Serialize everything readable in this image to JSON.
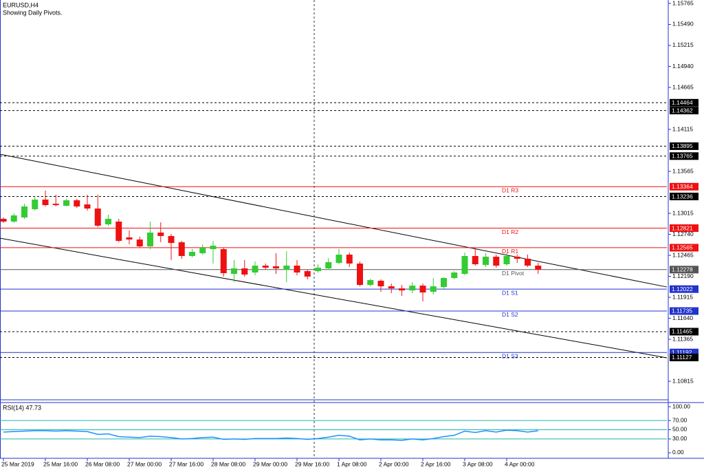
{
  "chart_data": [
    {
      "type": "candlestick",
      "title": "EURUSD,H4",
      "subtitle": "Showing Daily Pivots.",
      "categories": [
        "25 Mar 2019",
        null,
        null,
        null,
        "25 Mar 16:00",
        null,
        null,
        null,
        "26 Mar 08:00",
        null,
        null,
        null,
        "27 Mar 00:00",
        null,
        null,
        null,
        "27 Mar 16:00",
        null,
        null,
        null,
        "28 Mar 08:00",
        null,
        null,
        null,
        "29 Mar 00:00",
        null,
        null,
        null,
        "29 Mar 16:00",
        null,
        null,
        null,
        "1 Apr 08:00",
        null,
        null,
        null,
        "2 Apr 00:00",
        null,
        null,
        null,
        "2 Apr 16:00",
        null,
        null,
        null,
        "3 Apr 08:00",
        null,
        null,
        null,
        "4 Apr 00:00",
        null,
        null,
        null
      ],
      "open": [
        1.12943,
        1.12907,
        1.12961,
        1.13069,
        1.13195,
        1.13141,
        1.13114,
        1.13186,
        1.13132,
        1.13078,
        1.12871,
        1.12907,
        1.127,
        1.12672,
        1.12582,
        1.12763,
        1.12718,
        1.12636,
        1.12456,
        1.12492,
        1.12546,
        1.12546,
        1.12222,
        1.12294,
        1.1224,
        1.1233,
        1.12321,
        1.12276,
        1.1233,
        1.12258,
        1.12258,
        1.12294,
        1.12366,
        1.12474,
        1.12357,
        1.12077,
        1.12132,
        1.12059,
        1.12032,
        1.12005,
        1.12068,
        1.11987,
        1.1205,
        1.12168,
        1.12222,
        1.12456,
        1.12339,
        1.12447,
        1.12348,
        1.12447,
        1.1242,
        1.1233
      ],
      "high": [
        1.12961,
        1.13015,
        1.13141,
        1.1324,
        1.13313,
        1.13259,
        1.13204,
        1.13204,
        1.13259,
        1.13259,
        1.12997,
        1.12943,
        1.1279,
        1.12709,
        1.12907,
        1.12898,
        1.12745,
        1.12654,
        1.12546,
        1.12609,
        1.12654,
        1.12564,
        1.12402,
        1.12402,
        1.12384,
        1.12357,
        1.12492,
        1.12519,
        1.12402,
        1.12276,
        1.12348,
        1.12429,
        1.12546,
        1.12501,
        1.12384,
        1.12159,
        1.1215,
        1.12095,
        1.12077,
        1.12113,
        1.12095,
        1.12168,
        1.12177,
        1.12258,
        1.12501,
        1.12564,
        1.12492,
        1.12474,
        1.12492,
        1.12474,
        1.12474,
        1.12366
      ],
      "low": [
        1.12889,
        1.12889,
        1.12943,
        1.13051,
        1.13105,
        1.13105,
        1.13105,
        1.13087,
        1.13051,
        1.12835,
        1.12853,
        1.12636,
        1.12609,
        1.12564,
        1.12546,
        1.12636,
        1.12402,
        1.1242,
        1.12438,
        1.12474,
        1.12357,
        1.12186,
        1.12113,
        1.12186,
        1.12204,
        1.12276,
        1.12222,
        1.12113,
        1.12204,
        1.1215,
        1.1224,
        1.12276,
        1.12348,
        1.12312,
        1.12059,
        1.12059,
        1.11987,
        1.11969,
        1.11933,
        1.11969,
        1.11861,
        1.11951,
        1.12023,
        1.1215,
        1.12204,
        1.1233,
        1.12312,
        1.12303,
        1.1233,
        1.12366,
        1.12312,
        1.12222
      ],
      "close": [
        1.12907,
        1.12988,
        1.13105,
        1.13195,
        1.13123,
        1.13123,
        1.13186,
        1.13105,
        1.13078,
        1.12853,
        1.12943,
        1.12654,
        1.12672,
        1.12582,
        1.12763,
        1.12718,
        1.12627,
        1.12456,
        1.1251,
        1.12564,
        1.12591,
        1.12231,
        1.12294,
        1.12213,
        1.1233,
        1.12303,
        1.12294,
        1.1233,
        1.1224,
        1.12186,
        1.12303,
        1.12375,
        1.12474,
        1.12357,
        1.12077,
        1.12141,
        1.12059,
        1.12032,
        1.12005,
        1.12068,
        1.11978,
        1.12059,
        1.12168,
        1.1224,
        1.12456,
        1.12348,
        1.12447,
        1.1233,
        1.12456,
        1.1242,
        1.1233,
        1.12276
      ],
      "up_color": "#33cc33",
      "down_color": "#ee1111",
      "ylim": [
        1.10581,
        1.1581
      ],
      "yticks": [
        1.15765,
        {
          "value": 1.1549,
          "label": "1.15490"
        },
        1.15215,
        {
          "value": 1.1494,
          "label": "1.14940"
        },
        1.14665,
        1.14115,
        1.13565,
        1.13015,
        {
          "value": 1.1274,
          "label": "1.12740"
        },
        1.12465,
        {
          "value": 1.1219,
          "label": "1.12190"
        },
        1.11915,
        {
          "value": 1.1164,
          "label": "1.11640"
        },
        1.11365,
        1.10815
      ],
      "levels": [
        {
          "value": 1.14464,
          "color": "#000000",
          "style": "dashed"
        },
        {
          "value": 1.14362,
          "color": "#000000",
          "style": "dashed"
        },
        {
          "value": 1.13895,
          "color": "#000000",
          "style": "dashed"
        },
        {
          "value": 1.13765,
          "color": "#000000",
          "style": "dashed"
        },
        {
          "value": 1.13364,
          "color": "#ee1111",
          "style": "solid",
          "name": "D1 R3"
        },
        {
          "value": 1.13236,
          "color": "#000000",
          "style": "dashed"
        },
        {
          "value": 1.12821,
          "color": "#ee1111",
          "style": "solid",
          "name": "D1 R2"
        },
        {
          "value": 1.12565,
          "color": "#ee1111",
          "style": "solid",
          "name": "D1 R1"
        },
        {
          "value": 1.12278,
          "color": "#555555",
          "style": "solid",
          "name": "D1 Pivot"
        },
        {
          "value": 1.12022,
          "color": "#2233cc",
          "style": "solid",
          "name": "D1 S1"
        },
        {
          "value": 1.11735,
          "color": "#2233cc",
          "style": "solid",
          "name": "D1 S2"
        },
        {
          "value": 1.11465,
          "color": "#000000",
          "style": "dashed"
        },
        {
          "value": 1.11192,
          "color": "#2233cc",
          "style": "solid",
          "name": "D1 S3"
        },
        {
          "value": 1.11127,
          "color": "#000000",
          "style": "dashed"
        }
      ],
      "trendlines": [
        {
          "from": 1.1379,
          "to": 1.1205
        },
        {
          "from": 1.1269,
          "to": 1.11122
        }
      ]
    },
    {
      "type": "line",
      "title": "RSI(14) 47.73",
      "color": "#1e90ff",
      "level_color": "#20b2aa",
      "values": [
        45,
        46,
        47,
        48,
        48,
        47,
        48,
        47,
        46,
        40,
        41,
        35,
        34,
        33,
        36,
        35,
        33,
        30,
        31,
        33,
        34,
        29,
        30,
        29,
        31,
        31,
        31,
        32,
        31,
        29,
        31,
        34,
        38,
        36,
        28,
        30,
        28,
        28,
        27,
        30,
        28,
        31,
        35,
        38,
        47,
        44,
        48,
        45,
        49,
        48,
        45,
        47.73
      ],
      "ylim": [
        -12,
        107.5
      ],
      "yticks": [
        {
          "value": 100,
          "label": "100.00"
        },
        {
          "value": 70,
          "label": "70.00"
        },
        {
          "value": 50,
          "label": "50.00"
        },
        {
          "value": 30,
          "label": "30.00"
        },
        {
          "value": 0,
          "label": "0.00"
        }
      ],
      "levels": [
        70,
        50,
        30
      ]
    }
  ]
}
